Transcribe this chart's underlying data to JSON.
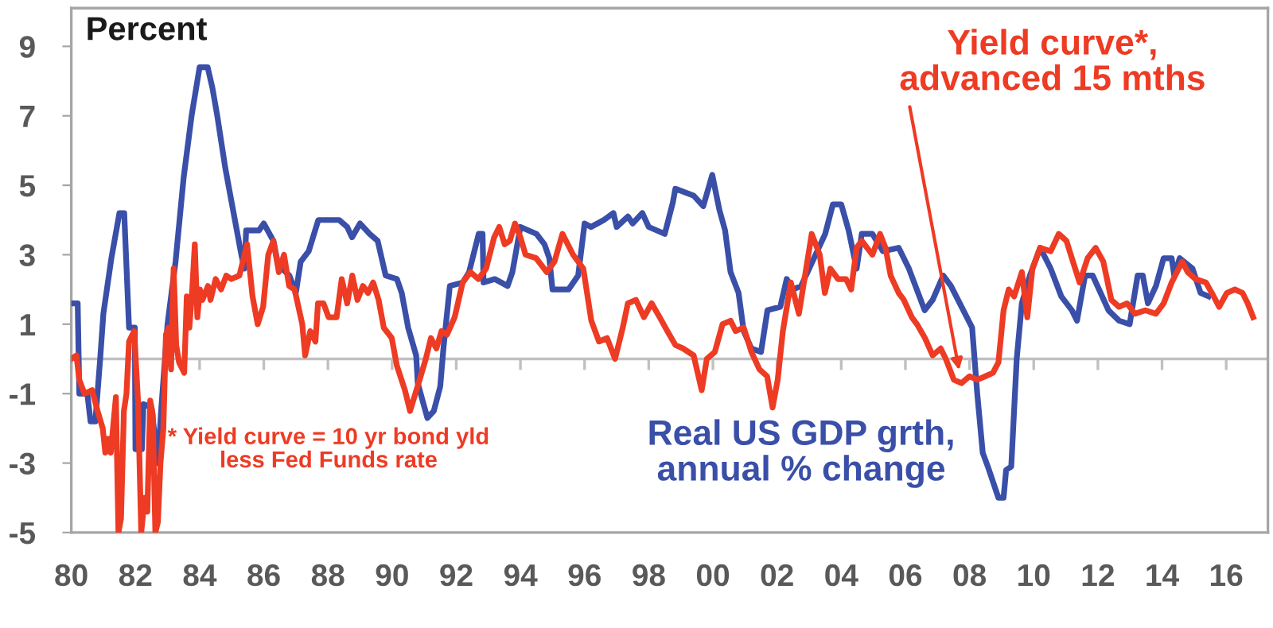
{
  "chart_data": {
    "type": "line",
    "ylabel": "Percent",
    "xlim": [
      1980,
      2017.3
    ],
    "ylim": [
      -5,
      10.1
    ],
    "xticks": [
      {
        "value": 1980,
        "label": "80"
      },
      {
        "value": 1982,
        "label": "82"
      },
      {
        "value": 1984,
        "label": "84"
      },
      {
        "value": 1986,
        "label": "86"
      },
      {
        "value": 1988,
        "label": "88"
      },
      {
        "value": 1990,
        "label": "90"
      },
      {
        "value": 1992,
        "label": "92"
      },
      {
        "value": 1994,
        "label": "94"
      },
      {
        "value": 1996,
        "label": "96"
      },
      {
        "value": 1998,
        "label": "98"
      },
      {
        "value": 2000,
        "label": "00"
      },
      {
        "value": 2002,
        "label": "02"
      },
      {
        "value": 2004,
        "label": "04"
      },
      {
        "value": 2006,
        "label": "06"
      },
      {
        "value": 2008,
        "label": "08"
      },
      {
        "value": 2010,
        "label": "10"
      },
      {
        "value": 2012,
        "label": "12"
      },
      {
        "value": 2014,
        "label": "14"
      },
      {
        "value": 2016,
        "label": "16"
      }
    ],
    "yticks": [
      -5,
      -3,
      -1,
      1,
      3,
      5,
      7,
      9
    ],
    "grid": false,
    "legend": false,
    "marker": "none",
    "line_style": "solid",
    "ref_lines": [
      {
        "axis": "y",
        "value": 0,
        "label": null,
        "color": "#c0c0c0"
      }
    ],
    "annotations": [
      "* Yield curve = 10 yr bond yld\nless Fed Funds rate"
    ],
    "series": [
      {
        "name": "Real US GDP grth,\nannual % change",
        "color": "#3a4fa8",
        "x": [
          1980.0,
          1980.2,
          1980.25,
          1980.5,
          1980.6,
          1980.75,
          1980.9,
          1981.0,
          1981.25,
          1981.5,
          1981.65,
          1981.8,
          1981.98,
          1982.0,
          1982.2,
          1982.25,
          1982.5,
          1982.7,
          1982.8,
          1983.0,
          1983.25,
          1983.5,
          1983.75,
          1984.0,
          1984.25,
          1984.4,
          1984.55,
          1984.8,
          1985.1,
          1985.3,
          1985.4,
          1985.45,
          1985.85,
          1986.0,
          1986.3,
          1986.45,
          1986.8,
          1987.0,
          1987.15,
          1987.4,
          1987.7,
          1988.35,
          1988.6,
          1988.75,
          1989.0,
          1989.3,
          1989.55,
          1989.8,
          1990.15,
          1990.3,
          1990.5,
          1990.75,
          1990.8,
          1991.1,
          1991.3,
          1991.5,
          1991.6,
          1991.8,
          1992.2,
          1992.4,
          1992.7,
          1992.82,
          1992.85,
          1993.2,
          1993.6,
          1993.75,
          1994.0,
          1994.5,
          1994.75,
          1994.9,
          1995.0,
          1995.5,
          1995.8,
          1996.0,
          1996.2,
          1996.6,
          1996.9,
          1997.0,
          1997.35,
          1997.5,
          1997.8,
          1998.0,
          1998.5,
          1998.75,
          1998.83,
          1999.4,
          1999.7,
          1999.98,
          2000.2,
          2000.38,
          2000.55,
          2000.8,
          2000.96,
          2001.2,
          2001.5,
          2001.7,
          2002.1,
          2002.3,
          2002.5,
          2002.75,
          2003.5,
          2003.74,
          2004.0,
          2004.23,
          2004.48,
          2004.64,
          2004.97,
          2005.3,
          2005.79,
          2006.11,
          2006.6,
          2006.85,
          2007.18,
          2007.42,
          2008.08,
          2008.24,
          2008.41,
          2008.57,
          2008.9,
          2009.06,
          2009.14,
          2009.3,
          2009.47,
          2009.63,
          2009.88,
          2010.2,
          2010.53,
          2010.86,
          2011.19,
          2011.35,
          2011.6,
          2011.84,
          2012.33,
          2012.66,
          2012.99,
          2013.24,
          2013.4,
          2013.56,
          2013.81,
          2014.05,
          2014.3,
          2014.38,
          2014.55,
          2014.95,
          2015.2,
          2015.45
        ],
        "values": [
          1.6,
          1.6,
          -1.0,
          -1.0,
          -1.8,
          -1.8,
          0.0,
          1.3,
          2.9,
          4.2,
          4.2,
          0.9,
          0.9,
          -2.6,
          -2.6,
          -1.3,
          -1.4,
          -3.0,
          -1.5,
          1.0,
          2.8,
          5.2,
          7.0,
          8.4,
          8.4,
          7.8,
          7.0,
          5.5,
          4.0,
          3.0,
          2.6,
          3.7,
          3.7,
          3.9,
          3.4,
          2.7,
          2.4,
          1.9,
          2.8,
          3.1,
          4.0,
          4.0,
          3.8,
          3.5,
          3.9,
          3.6,
          3.4,
          2.4,
          2.3,
          1.9,
          0.9,
          0.1,
          -0.7,
          -1.7,
          -1.5,
          -0.8,
          0.3,
          2.1,
          2.2,
          2.5,
          3.6,
          3.6,
          2.2,
          2.3,
          2.1,
          2.5,
          3.8,
          3.6,
          3.3,
          2.9,
          2.0,
          2.0,
          2.4,
          3.9,
          3.8,
          4.0,
          4.2,
          3.8,
          4.1,
          3.9,
          4.2,
          3.8,
          3.6,
          4.5,
          4.9,
          4.7,
          4.4,
          5.3,
          4.3,
          3.7,
          2.5,
          1.9,
          0.8,
          0.3,
          0.2,
          1.4,
          1.5,
          2.3,
          2.0,
          2.1,
          3.6,
          4.45,
          4.45,
          3.7,
          2.6,
          3.6,
          3.6,
          3.1,
          3.2,
          2.6,
          1.4,
          1.7,
          2.4,
          2.1,
          0.9,
          -1.0,
          -2.7,
          -3.1,
          -4.0,
          -4.0,
          -3.2,
          -3.1,
          0.0,
          1.6,
          2.4,
          3.2,
          2.6,
          1.8,
          1.4,
          1.1,
          2.4,
          2.4,
          1.4,
          1.1,
          1.0,
          2.4,
          2.4,
          1.6,
          2.1,
          2.9,
          2.9,
          2.4,
          2.9,
          2.6,
          1.9,
          1.8
        ]
      },
      {
        "name": "Yield curve*,\nadvanced 15 mths",
        "color": "#ee3b24",
        "x": [
          1980.0,
          1980.16,
          1980.25,
          1980.41,
          1980.65,
          1980.82,
          1980.98,
          1981.06,
          1981.15,
          1981.23,
          1981.31,
          1981.39,
          1981.47,
          1981.55,
          1981.64,
          1981.72,
          1981.8,
          1981.96,
          1982.08,
          1982.18,
          1982.29,
          1982.37,
          1982.46,
          1982.54,
          1982.62,
          1982.7,
          1982.78,
          1982.87,
          1982.95,
          1983.03,
          1983.11,
          1983.19,
          1983.27,
          1983.36,
          1983.52,
          1983.6,
          1983.68,
          1983.77,
          1983.85,
          1983.93,
          1984.01,
          1984.09,
          1984.26,
          1984.34,
          1984.5,
          1984.67,
          1984.83,
          1984.99,
          1985.24,
          1985.48,
          1985.65,
          1985.81,
          1985.98,
          1986.14,
          1986.3,
          1986.47,
          1986.63,
          1986.79,
          1986.96,
          1987.2,
          1987.29,
          1987.45,
          1987.61,
          1987.69,
          1987.86,
          1988.02,
          1988.27,
          1988.43,
          1988.6,
          1988.76,
          1988.92,
          1989.09,
          1989.25,
          1989.41,
          1989.58,
          1989.74,
          1989.99,
          1990.15,
          1990.4,
          1990.56,
          1990.89,
          1991.05,
          1991.21,
          1991.38,
          1991.54,
          1991.71,
          1991.95,
          1992.2,
          1992.44,
          1992.69,
          1992.93,
          1993.18,
          1993.34,
          1993.51,
          1993.67,
          1993.83,
          1994.0,
          1994.16,
          1994.49,
          1994.82,
          1995.06,
          1995.31,
          1995.64,
          1995.8,
          1995.96,
          1996.21,
          1996.45,
          1996.7,
          1996.95,
          1997.19,
          1997.35,
          1997.6,
          1997.85,
          1998.09,
          1998.34,
          1998.58,
          1998.83,
          1999.07,
          1999.4,
          1999.65,
          1999.81,
          2000.06,
          2000.3,
          2000.55,
          2000.71,
          2000.96,
          2001.2,
          2001.45,
          2001.69,
          2001.86,
          2002.02,
          2002.18,
          2002.43,
          2002.68,
          2003.08,
          2003.33,
          2003.49,
          2003.66,
          2003.9,
          2004.15,
          2004.31,
          2004.48,
          2004.64,
          2004.97,
          2005.21,
          2005.38,
          2005.54,
          2005.79,
          2005.95,
          2006.2,
          2006.36,
          2006.61,
          2006.85,
          2007.1,
          2007.26,
          2007.51,
          2007.75,
          2008.0,
          2008.24,
          2008.49,
          2008.73,
          2008.9,
          2009.06,
          2009.22,
          2009.39,
          2009.63,
          2009.8,
          2009.96,
          2010.2,
          2010.53,
          2010.78,
          2011.02,
          2011.19,
          2011.43,
          2011.68,
          2011.93,
          2012.17,
          2012.42,
          2012.66,
          2012.91,
          2013.15,
          2013.48,
          2013.81,
          2014.05,
          2014.3,
          2014.63,
          2014.8,
          2015.04,
          2015.37,
          2015.61,
          2015.78,
          2016.02,
          2016.27,
          2016.51,
          2016.67,
          2016.84
        ],
        "values": [
          0.0,
          0.1,
          -0.6,
          -1.0,
          -0.9,
          -1.5,
          -2.0,
          -2.7,
          -2.3,
          -2.7,
          -1.9,
          -1.1,
          -5.0,
          -4.6,
          -1.5,
          -1.0,
          0.5,
          0.8,
          -1.2,
          -5.0,
          -4.0,
          -4.4,
          -1.2,
          -1.6,
          -5.0,
          -4.7,
          -3.0,
          -2.0,
          0.7,
          0.9,
          -0.3,
          2.6,
          0.4,
          -0.1,
          -0.4,
          1.8,
          0.9,
          2.0,
          3.3,
          1.2,
          2.0,
          1.7,
          2.1,
          1.7,
          2.3,
          2.0,
          2.4,
          2.3,
          2.4,
          3.3,
          1.8,
          1.0,
          1.5,
          3.0,
          3.4,
          2.5,
          3.0,
          2.1,
          2.0,
          1.0,
          0.1,
          0.8,
          0.5,
          1.6,
          1.6,
          1.2,
          1.2,
          2.3,
          1.6,
          2.4,
          1.7,
          2.1,
          1.9,
          2.2,
          1.7,
          0.9,
          0.6,
          -0.2,
          -0.9,
          -1.5,
          -0.5,
          0.0,
          0.6,
          0.3,
          0.8,
          0.7,
          1.2,
          2.2,
          2.5,
          2.3,
          2.6,
          3.5,
          3.8,
          3.3,
          3.4,
          3.9,
          3.5,
          3.0,
          2.9,
          2.5,
          2.8,
          3.6,
          3.0,
          2.8,
          2.6,
          1.1,
          0.5,
          0.6,
          0.0,
          0.9,
          1.6,
          1.7,
          1.2,
          1.6,
          1.2,
          0.8,
          0.4,
          0.3,
          0.1,
          -0.9,
          0.0,
          0.2,
          1.0,
          1.1,
          0.8,
          0.9,
          0.2,
          -0.3,
          -0.5,
          -1.4,
          -0.6,
          0.8,
          2.2,
          1.3,
          3.6,
          3.0,
          1.9,
          2.6,
          2.3,
          2.3,
          2.0,
          3.2,
          3.4,
          3.0,
          3.6,
          3.2,
          2.4,
          1.9,
          1.7,
          1.2,
          1.0,
          0.6,
          0.1,
          0.3,
          0.0,
          -0.6,
          -0.7,
          -0.5,
          -0.6,
          -0.5,
          -0.4,
          -0.1,
          1.4,
          2.0,
          1.8,
          2.5,
          1.2,
          2.6,
          3.2,
          3.1,
          3.6,
          3.4,
          2.9,
          2.2,
          2.9,
          3.2,
          2.8,
          1.7,
          1.5,
          1.6,
          1.3,
          1.4,
          1.3,
          1.6,
          2.2,
          2.8,
          2.5,
          2.3,
          2.2,
          1.8,
          1.5,
          1.9,
          2.0,
          1.9,
          1.6,
          1.2
        ]
      }
    ]
  }
}
